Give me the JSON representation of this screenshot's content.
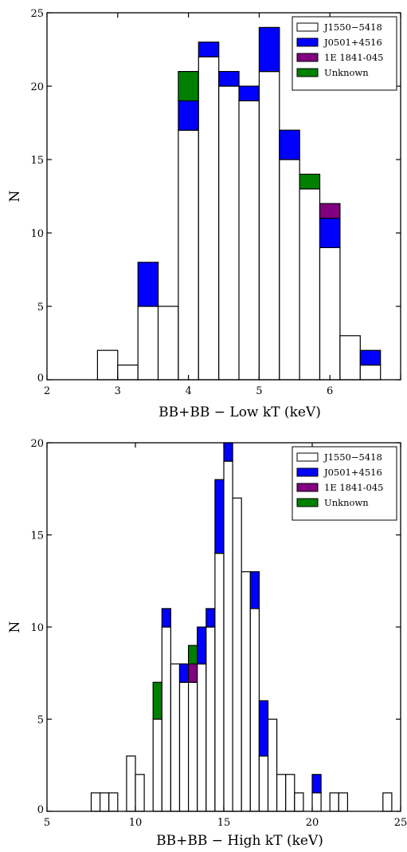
{
  "colors": {
    "J1550-5418": "#ffffff",
    "J0501+4516": "#0000ff",
    "1E 1841-045": "#800080",
    "Unknown": "#008000"
  },
  "chart_data": [
    {
      "type": "bar",
      "stacked": true,
      "xlabel": "BB+BB − Low kT (keV)",
      "ylabel": "N",
      "xlim": [
        2,
        7
      ],
      "ylim": [
        0,
        25
      ],
      "xticks": [
        2,
        3,
        4,
        5,
        6,
        7
      ],
      "xtick_labels": [
        "2",
        "3",
        "4",
        "5",
        "6",
        ""
      ],
      "yticks": [
        0,
        5,
        10,
        15,
        20,
        25
      ],
      "ytick_labels": [
        "0",
        "5",
        "10",
        "15",
        "20",
        "25"
      ],
      "legend_position": "top-right",
      "bin_width": 0.286,
      "bin_edges": [
        2.714,
        3.0,
        3.286,
        3.571,
        3.857,
        4.143,
        4.429,
        4.714,
        5.0,
        5.286,
        5.571,
        5.857,
        6.143,
        6.429,
        6.714
      ],
      "series": [
        {
          "name": "J1550−5418",
          "values": [
            2,
            1,
            5,
            5,
            17,
            22,
            20,
            19,
            21,
            15,
            13,
            9,
            3,
            1
          ]
        },
        {
          "name": "J0501+4516",
          "values": [
            0,
            0,
            3,
            0,
            2,
            1,
            1,
            1,
            3,
            2,
            0,
            2,
            0,
            1
          ]
        },
        {
          "name": "1E 1841-045",
          "values": [
            0,
            0,
            0,
            0,
            0,
            0,
            0,
            0,
            0,
            0,
            0,
            1,
            0,
            0
          ]
        },
        {
          "name": "Unknown",
          "values": [
            0,
            0,
            0,
            0,
            2,
            0,
            0,
            0,
            0,
            0,
            1,
            0,
            0,
            0
          ]
        }
      ]
    },
    {
      "type": "bar",
      "stacked": true,
      "xlabel": "BB+BB − High kT (keV)",
      "ylabel": "N",
      "xlim": [
        5,
        25
      ],
      "ylim": [
        0,
        20
      ],
      "xticks": [
        5,
        10,
        15,
        20,
        25
      ],
      "xtick_labels": [
        "5",
        "10",
        "15",
        "20",
        "25"
      ],
      "yticks": [
        0,
        5,
        10,
        15,
        20
      ],
      "ytick_labels": [
        "0",
        "5",
        "10",
        "15",
        "20"
      ],
      "legend_position": "top-right",
      "bin_width": 0.5,
      "bin_edges": [
        7.5,
        8.0,
        8.5,
        9.0,
        9.5,
        10.0,
        10.5,
        11.0,
        11.5,
        12.0,
        12.5,
        13.0,
        13.5,
        14.0,
        14.5,
        15.0,
        15.5,
        16.0,
        16.5,
        17.0,
        17.5,
        18.0,
        18.5,
        19.0,
        19.5,
        20.0,
        20.5,
        21.0,
        21.5,
        22.0,
        22.5,
        23.0,
        23.5,
        24.0
      ],
      "series": [
        {
          "name": "J1550−5418",
          "values": [
            1,
            1,
            1,
            0,
            3,
            2,
            0,
            5,
            10,
            8,
            7,
            7,
            8,
            10,
            14,
            19,
            17,
            13,
            11,
            3,
            5,
            2,
            2,
            1,
            0,
            1,
            0,
            1,
            1,
            0,
            0,
            0,
            0,
            1
          ]
        },
        {
          "name": "J0501+4516",
          "values": [
            0,
            0,
            0,
            0,
            0,
            0,
            0,
            0,
            1,
            0,
            1,
            0,
            2,
            1,
            4,
            1,
            0,
            0,
            2,
            3,
            0,
            0,
            0,
            0,
            0,
            1,
            0,
            0,
            0,
            0,
            0,
            0,
            0,
            0
          ]
        },
        {
          "name": "1E 1841-045",
          "values": [
            0,
            0,
            0,
            0,
            0,
            0,
            0,
            0,
            0,
            0,
            0,
            1,
            0,
            0,
            0,
            0,
            0,
            0,
            0,
            0,
            0,
            0,
            0,
            0,
            0,
            0,
            0,
            0,
            0,
            0,
            0,
            0,
            0,
            0
          ]
        },
        {
          "name": "Unknown",
          "values": [
            0,
            0,
            0,
            0,
            0,
            0,
            0,
            2,
            0,
            0,
            0,
            1,
            0,
            0,
            0,
            0,
            0,
            0,
            0,
            0,
            0,
            0,
            0,
            0,
            0,
            0,
            0,
            0,
            0,
            0,
            0,
            0,
            0,
            0
          ]
        }
      ]
    }
  ]
}
